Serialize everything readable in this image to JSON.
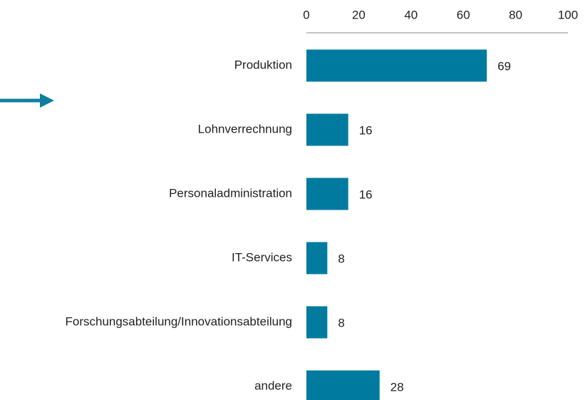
{
  "chart_data": {
    "type": "hbar",
    "categories": [
      "Produktion",
      "Lohnverrechnung",
      "Personaladministration",
      "IT-Services",
      "Forschungsabteilung/Innovationsabteilung",
      "andere"
    ],
    "values": [
      69,
      16,
      16,
      8,
      8,
      28
    ],
    "color": "#007b9f",
    "xlim": [
      0,
      100
    ],
    "xticks": [
      0,
      20,
      40,
      60,
      80,
      100
    ]
  }
}
